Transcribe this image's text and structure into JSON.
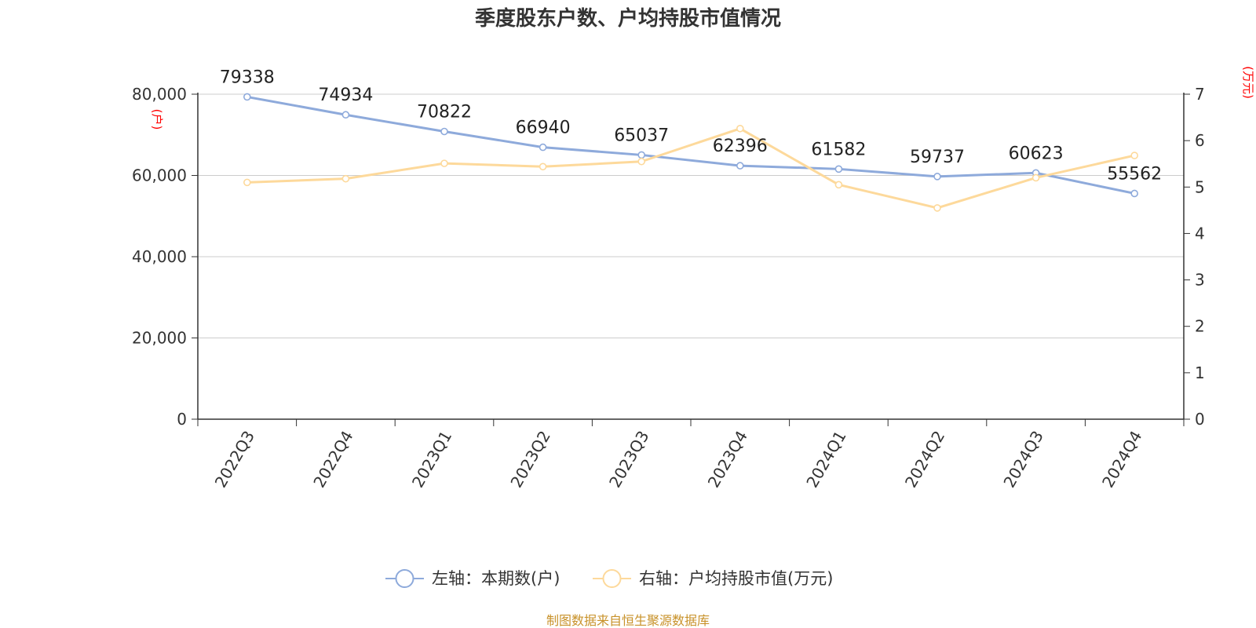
{
  "chart_data": {
    "type": "line",
    "title": "季度股东户数、户均持股市值情况",
    "categories": [
      "2022Q3",
      "2022Q4",
      "2023Q1",
      "2023Q2",
      "2023Q3",
      "2023Q4",
      "2024Q1",
      "2024Q2",
      "2024Q3",
      "2024Q4"
    ],
    "series": [
      {
        "name": "左轴：本期数(户)",
        "axis": "left",
        "color": "#8eaadb",
        "values": [
          79338,
          74934,
          70822,
          66940,
          65037,
          62396,
          61582,
          59737,
          60623,
          55562
        ],
        "value_labels": [
          "79338",
          "74934",
          "70822",
          "66940",
          "65037",
          "62396",
          "61582",
          "59737",
          "60623",
          "55562"
        ]
      },
      {
        "name": "右轴：户均持股市值(万元)",
        "axis": "right",
        "color": "#fdd99b",
        "values": [
          5.1,
          5.18,
          5.51,
          5.44,
          5.55,
          6.26,
          5.05,
          4.55,
          5.2,
          5.68
        ]
      }
    ],
    "left_axis": {
      "unit_label": "(户)",
      "range": [
        0,
        80000
      ],
      "ticks": [
        0,
        20000,
        40000,
        60000,
        80000
      ],
      "tick_labels": [
        "0",
        "20,000",
        "40,000",
        "60,000",
        "80,000"
      ]
    },
    "right_axis": {
      "unit_label": "(万元)",
      "range": [
        0,
        7
      ],
      "ticks": [
        0,
        1,
        2,
        3,
        4,
        5,
        6,
        7
      ],
      "tick_labels": [
        "0",
        "1",
        "2",
        "3",
        "4",
        "5",
        "6",
        "7"
      ]
    },
    "grid": true,
    "legend_position": "bottom-center",
    "unit_color": "#ff0000",
    "source_text": "制图数据来自恒生聚源数据库",
    "source_color": "#c8922a"
  }
}
